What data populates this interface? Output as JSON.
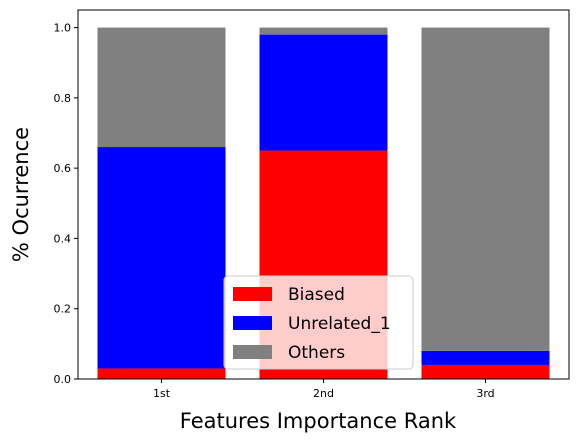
{
  "chart_data": {
    "type": "bar",
    "stacked": true,
    "categories": [
      "1st",
      "2nd",
      "3rd"
    ],
    "series": [
      {
        "name": "Biased",
        "color": "#ff0000",
        "values": [
          0.03,
          0.65,
          0.04
        ]
      },
      {
        "name": "Unrelated_1",
        "color": "#0000ff",
        "values": [
          0.63,
          0.33,
          0.04
        ]
      },
      {
        "name": "Others",
        "color": "#808080",
        "values": [
          0.34,
          0.02,
          0.92
        ]
      }
    ],
    "xlabel": "Features Importance Rank",
    "ylabel": "% Ocurrence",
    "ylim": [
      0,
      1.05
    ],
    "yticks": [
      "0.0",
      "0.2",
      "0.4",
      "0.6",
      "0.8",
      "1.0"
    ],
    "ytick_values": [
      0,
      0.2,
      0.4,
      0.6,
      0.8,
      1.0
    ],
    "grid": false,
    "legend_position": "bottom-center"
  }
}
